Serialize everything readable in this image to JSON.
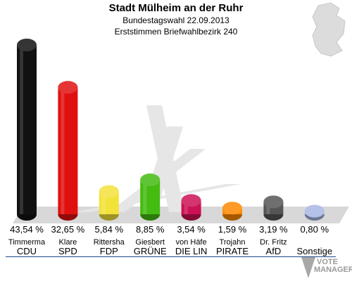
{
  "chart_data": {
    "type": "bar",
    "title": "Stadt Mülheim an der Ruhr",
    "subtitle": "Bundestagswahl 22.09.2013",
    "subtitle2": "Erststimmen Briefwahlbezirk 240",
    "categories": [
      "CDU",
      "SPD",
      "FDP",
      "GRÜNE",
      "DIE LIN",
      "PIRATE",
      "AfD",
      "Sonstige"
    ],
    "candidates": [
      "Timmerma",
      "Klare",
      "Rittersha",
      "Giesbert",
      "von Häfe",
      "Trojahn",
      "Dr. Fritz",
      ""
    ],
    "values": [
      43.54,
      32.65,
      5.84,
      8.85,
      3.54,
      1.59,
      3.19,
      0.8
    ],
    "labels": [
      "43,54 %",
      "32,65 %",
      "5,84 %",
      "8,85 %",
      "3,54 %",
      "1,59 %",
      "3,19 %",
      "0,80 %"
    ],
    "colors": [
      "#111111",
      "#e01010",
      "#f2e23a",
      "#44bb11",
      "#cc1155",
      "#ff8800",
      "#555555",
      "#a9b6e6"
    ],
    "ylim": [
      0,
      43.54
    ]
  },
  "watermark": {
    "line1": "VOTE",
    "line2": "MANAGER"
  },
  "icons": {
    "map": "germany-map-icon"
  }
}
